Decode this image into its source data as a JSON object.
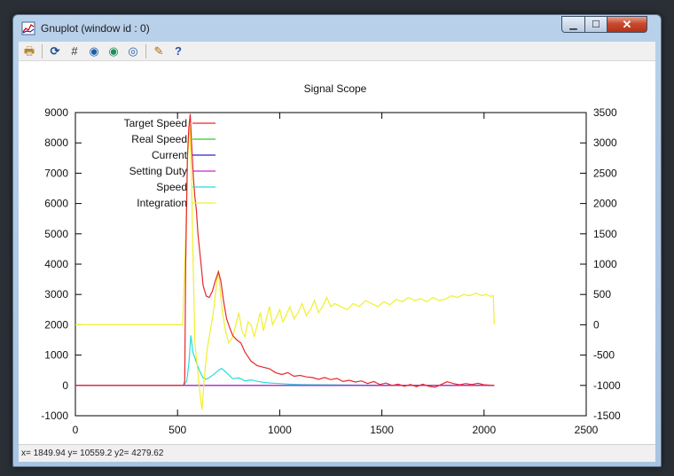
{
  "window": {
    "title": "Gnuplot (window id : 0)"
  },
  "toolbar": {
    "icons": [
      "copy-print-icon",
      "replot-icon",
      "grid-icon",
      "zoom-prev-icon",
      "zoom-next-icon",
      "unzoom-icon",
      "options-icon",
      "help-icon"
    ]
  },
  "status": {
    "text": "x= 1849.94 y= 10559.2 y2= 4279.62"
  },
  "chart_data": {
    "type": "line",
    "title": "Signal Scope",
    "xlim": [
      0,
      2500
    ],
    "ylim": [
      -1000,
      9000
    ],
    "y2lim": [
      -1500,
      3500
    ],
    "x_ticks": [
      "0",
      "500",
      "1000",
      "1500",
      "2000",
      "2500"
    ],
    "y_ticks": [
      "-1000",
      "0",
      "1000",
      "2000",
      "3000",
      "4000",
      "5000",
      "6000",
      "7000",
      "8000",
      "9000"
    ],
    "y2_ticks": [
      "-1500",
      "-1000",
      "-500",
      "0",
      "500",
      "1000",
      "1500",
      "2000",
      "2500",
      "3000",
      "3500"
    ],
    "legend_position": "top-left",
    "series": [
      {
        "name": "Target Speed",
        "color": "#e8272b",
        "axis": "y",
        "points": [
          [
            0,
            0
          ],
          [
            530,
            0
          ],
          [
            535,
            150
          ],
          [
            540,
            4000
          ],
          [
            548,
            7500
          ],
          [
            555,
            8500
          ],
          [
            562,
            8950
          ],
          [
            570,
            7800
          ],
          [
            578,
            6800
          ],
          [
            585,
            6200
          ],
          [
            592,
            5800
          ],
          [
            600,
            5000
          ],
          [
            615,
            4000
          ],
          [
            625,
            3300
          ],
          [
            640,
            2950
          ],
          [
            655,
            2900
          ],
          [
            670,
            3100
          ],
          [
            685,
            3450
          ],
          [
            700,
            3750
          ],
          [
            712,
            3450
          ],
          [
            725,
            2800
          ],
          [
            740,
            2200
          ],
          [
            755,
            1900
          ],
          [
            770,
            1650
          ],
          [
            790,
            1500
          ],
          [
            810,
            1400
          ],
          [
            830,
            1100
          ],
          [
            860,
            800
          ],
          [
            890,
            650
          ],
          [
            920,
            600
          ],
          [
            950,
            550
          ],
          [
            980,
            420
          ],
          [
            1010,
            360
          ],
          [
            1040,
            420
          ],
          [
            1070,
            300
          ],
          [
            1100,
            330
          ],
          [
            1130,
            280
          ],
          [
            1160,
            260
          ],
          [
            1190,
            200
          ],
          [
            1220,
            260
          ],
          [
            1250,
            190
          ],
          [
            1280,
            230
          ],
          [
            1310,
            130
          ],
          [
            1340,
            170
          ],
          [
            1370,
            110
          ],
          [
            1400,
            150
          ],
          [
            1430,
            60
          ],
          [
            1460,
            130
          ],
          [
            1490,
            30
          ],
          [
            1520,
            80
          ],
          [
            1550,
            0
          ],
          [
            1580,
            40
          ],
          [
            1610,
            -30
          ],
          [
            1640,
            30
          ],
          [
            1670,
            -40
          ],
          [
            1700,
            40
          ],
          [
            1730,
            -30
          ],
          [
            1760,
            -60
          ],
          [
            1790,
            30
          ],
          [
            1820,
            120
          ],
          [
            1850,
            60
          ],
          [
            1880,
            20
          ],
          [
            1910,
            60
          ],
          [
            1940,
            30
          ],
          [
            1970,
            70
          ],
          [
            2000,
            20
          ],
          [
            2050,
            0
          ]
        ]
      },
      {
        "name": "Real Speed",
        "color": "#32c832",
        "axis": "y",
        "points": [
          [
            0,
            0
          ],
          [
            2050,
            0
          ]
        ]
      },
      {
        "name": "Current",
        "color": "#2828c8",
        "axis": "y",
        "points": [
          [
            0,
            0
          ],
          [
            2050,
            0
          ]
        ]
      },
      {
        "name": "Setting Duty",
        "color": "#c828c8",
        "axis": "y",
        "points": [
          [
            0,
            0
          ],
          [
            2050,
            0
          ]
        ]
      },
      {
        "name": "Speed",
        "color": "#28dcdc",
        "axis": "y",
        "points": [
          [
            0,
            0
          ],
          [
            530,
            0
          ],
          [
            545,
            150
          ],
          [
            555,
            700
          ],
          [
            565,
            1650
          ],
          [
            575,
            1100
          ],
          [
            585,
            900
          ],
          [
            595,
            700
          ],
          [
            610,
            450
          ],
          [
            625,
            250
          ],
          [
            640,
            200
          ],
          [
            660,
            280
          ],
          [
            680,
            380
          ],
          [
            700,
            500
          ],
          [
            715,
            560
          ],
          [
            730,
            480
          ],
          [
            750,
            350
          ],
          [
            770,
            220
          ],
          [
            800,
            250
          ],
          [
            830,
            150
          ],
          [
            860,
            180
          ],
          [
            900,
            120
          ],
          [
            950,
            80
          ],
          [
            1000,
            60
          ],
          [
            1050,
            40
          ],
          [
            1100,
            30
          ],
          [
            1200,
            20
          ],
          [
            1400,
            10
          ],
          [
            1600,
            5
          ],
          [
            2050,
            0
          ]
        ]
      },
      {
        "name": "Integration",
        "color": "#f0f02a",
        "axis": "y2",
        "points": [
          [
            0,
            0
          ],
          [
            525,
            0
          ],
          [
            540,
            1500
          ],
          [
            550,
            2800
          ],
          [
            560,
            3300
          ],
          [
            568,
            2500
          ],
          [
            575,
            1200
          ],
          [
            585,
            -300
          ],
          [
            600,
            -800
          ],
          [
            612,
            -1200
          ],
          [
            620,
            -1400
          ],
          [
            630,
            -900
          ],
          [
            645,
            -400
          ],
          [
            660,
            -100
          ],
          [
            675,
            200
          ],
          [
            690,
            650
          ],
          [
            700,
            900
          ],
          [
            710,
            500
          ],
          [
            720,
            200
          ],
          [
            735,
            -100
          ],
          [
            750,
            -300
          ],
          [
            770,
            -200
          ],
          [
            785,
            0
          ],
          [
            800,
            200
          ],
          [
            815,
            -100
          ],
          [
            830,
            -200
          ],
          [
            845,
            50
          ],
          [
            860,
            0
          ],
          [
            875,
            -200
          ],
          [
            890,
            0
          ],
          [
            905,
            200
          ],
          [
            920,
            -100
          ],
          [
            935,
            100
          ],
          [
            950,
            300
          ],
          [
            965,
            0
          ],
          [
            980,
            100
          ],
          [
            1000,
            250
          ],
          [
            1015,
            50
          ],
          [
            1030,
            150
          ],
          [
            1050,
            300
          ],
          [
            1070,
            100
          ],
          [
            1090,
            200
          ],
          [
            1110,
            350
          ],
          [
            1130,
            150
          ],
          [
            1150,
            250
          ],
          [
            1170,
            400
          ],
          [
            1190,
            200
          ],
          [
            1210,
            300
          ],
          [
            1230,
            450
          ],
          [
            1250,
            300
          ],
          [
            1270,
            350
          ],
          [
            1300,
            300
          ],
          [
            1330,
            250
          ],
          [
            1360,
            350
          ],
          [
            1390,
            300
          ],
          [
            1420,
            400
          ],
          [
            1450,
            350
          ],
          [
            1480,
            300
          ],
          [
            1510,
            380
          ],
          [
            1540,
            330
          ],
          [
            1570,
            420
          ],
          [
            1600,
            380
          ],
          [
            1630,
            450
          ],
          [
            1660,
            400
          ],
          [
            1690,
            430
          ],
          [
            1720,
            380
          ],
          [
            1750,
            450
          ],
          [
            1780,
            400
          ],
          [
            1810,
            420
          ],
          [
            1840,
            480
          ],
          [
            1870,
            450
          ],
          [
            1900,
            500
          ],
          [
            1930,
            480
          ],
          [
            1960,
            520
          ],
          [
            1990,
            480
          ],
          [
            2010,
            500
          ],
          [
            2030,
            470
          ],
          [
            2045,
            480
          ],
          [
            2050,
            0
          ]
        ]
      }
    ]
  }
}
